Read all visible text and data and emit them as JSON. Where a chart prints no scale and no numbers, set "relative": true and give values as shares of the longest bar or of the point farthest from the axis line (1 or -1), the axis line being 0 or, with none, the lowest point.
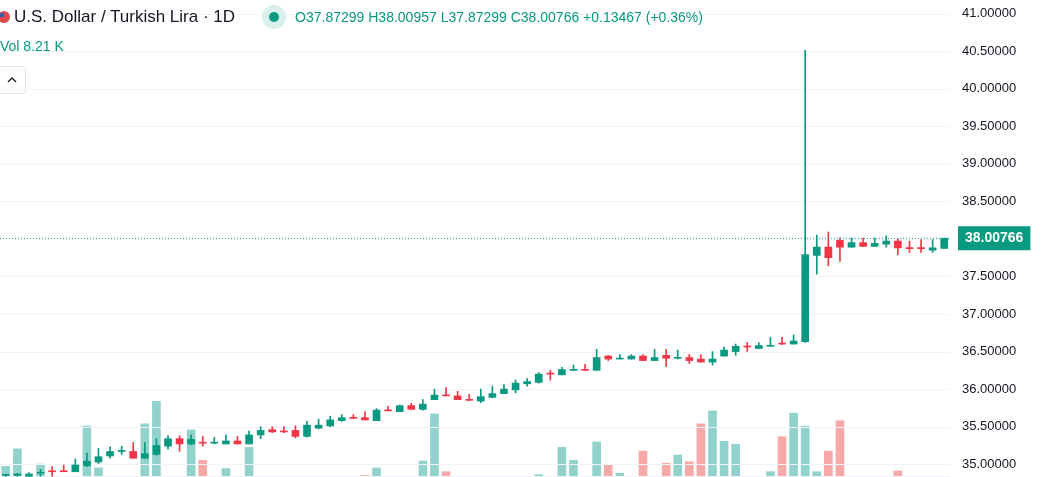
{
  "chart_data": [
    {
      "type": "candlestick",
      "title": "U.S. Dollar / Turkish Lira · 1D",
      "subtitle": "O37.87299 H38.00957 L37.87299 C38.00766 +0.13467 (+0.36%)",
      "annotations": [
        "Vol 8.21 K"
      ],
      "categories": [
        null,
        null,
        null,
        null,
        null,
        null,
        null,
        null,
        null,
        null,
        null,
        null,
        null,
        null,
        null,
        null,
        null,
        null,
        null,
        null,
        null,
        null,
        null,
        null,
        null,
        null,
        null,
        null,
        null,
        null,
        null,
        null,
        null,
        null,
        null,
        null,
        null,
        null,
        null,
        null,
        null,
        null,
        null,
        null,
        null,
        null,
        null,
        null,
        null,
        null,
        null,
        null,
        null,
        null,
        null,
        null,
        null,
        null,
        null,
        null,
        null,
        null,
        null,
        null,
        null,
        null,
        null,
        null,
        null,
        null,
        null,
        null,
        null,
        null,
        null,
        null,
        null,
        null,
        null,
        null,
        null,
        null
      ],
      "ohlc": [
        [
          34.85,
          34.87,
          34.84,
          34.86
        ],
        [
          34.85,
          34.88,
          34.84,
          34.87
        ],
        [
          34.84,
          34.89,
          34.84,
          34.87
        ],
        [
          34.88,
          34.93,
          34.84,
          34.89
        ],
        [
          34.91,
          34.97,
          34.84,
          34.9
        ],
        [
          34.91,
          34.99,
          34.9,
          34.9
        ],
        [
          34.9,
          35.07,
          34.9,
          34.99
        ],
        [
          34.98,
          35.15,
          34.97,
          35.04
        ],
        [
          35.03,
          35.21,
          35.01,
          35.1
        ],
        [
          35.11,
          35.23,
          35.08,
          35.17
        ],
        [
          35.17,
          35.24,
          35.13,
          35.18
        ],
        [
          35.17,
          35.29,
          35.08,
          35.08
        ],
        [
          35.08,
          35.29,
          35.08,
          35.14
        ],
        [
          35.13,
          35.34,
          35.12,
          35.25
        ],
        [
          35.24,
          35.38,
          35.2,
          35.34
        ],
        [
          35.34,
          35.38,
          35.17,
          35.27
        ],
        [
          35.27,
          35.39,
          35.26,
          35.33
        ],
        [
          35.29,
          35.37,
          35.24,
          35.28
        ],
        [
          35.28,
          35.36,
          35.27,
          35.29
        ],
        [
          35.27,
          35.39,
          35.27,
          35.31
        ],
        [
          35.31,
          35.37,
          35.27,
          35.27
        ],
        [
          35.27,
          35.44,
          35.27,
          35.39
        ],
        [
          35.39,
          35.5,
          35.34,
          35.45
        ],
        [
          35.46,
          35.5,
          35.42,
          35.43
        ],
        [
          35.44,
          35.5,
          35.42,
          35.43
        ],
        [
          35.45,
          35.51,
          35.35,
          35.37
        ],
        [
          35.37,
          35.57,
          35.36,
          35.52
        ],
        [
          35.48,
          35.6,
          35.47,
          35.52
        ],
        [
          35.51,
          35.64,
          35.5,
          35.59
        ],
        [
          35.58,
          35.66,
          35.57,
          35.62
        ],
        [
          35.62,
          35.66,
          35.61,
          35.61
        ],
        [
          35.62,
          35.7,
          35.59,
          35.59
        ],
        [
          35.58,
          35.74,
          35.58,
          35.72
        ],
        [
          35.72,
          35.77,
          35.71,
          35.71
        ],
        [
          35.7,
          35.79,
          35.7,
          35.78
        ],
        [
          35.78,
          35.81,
          35.73,
          35.73
        ],
        [
          35.73,
          35.86,
          35.72,
          35.8
        ],
        [
          35.86,
          36.0,
          35.86,
          35.92
        ],
        [
          35.92,
          36.02,
          35.91,
          35.91
        ],
        [
          35.91,
          35.97,
          35.86,
          35.86
        ],
        [
          35.86,
          35.93,
          35.85,
          35.85
        ],
        [
          35.84,
          36.0,
          35.82,
          35.9
        ],
        [
          35.89,
          36.04,
          35.89,
          35.94
        ],
        [
          35.94,
          36.06,
          35.94,
          36.0
        ],
        [
          35.99,
          36.12,
          35.95,
          36.08
        ],
        [
          36.07,
          36.14,
          36.04,
          36.1
        ],
        [
          36.09,
          36.22,
          36.08,
          36.2
        ],
        [
          36.21,
          36.25,
          36.12,
          36.2
        ],
        [
          36.19,
          36.29,
          36.19,
          36.26
        ],
        [
          36.25,
          36.32,
          36.25,
          36.26
        ],
        [
          36.26,
          36.33,
          36.25,
          36.25
        ],
        [
          36.25,
          36.53,
          36.25,
          36.42
        ],
        [
          36.44,
          36.45,
          36.38,
          36.4
        ],
        [
          36.4,
          36.46,
          36.4,
          36.41
        ],
        [
          36.4,
          36.46,
          36.4,
          36.44
        ],
        [
          36.44,
          36.46,
          36.38,
          36.38
        ],
        [
          36.38,
          36.53,
          36.38,
          36.42
        ],
        [
          36.45,
          36.53,
          36.3,
          36.41
        ],
        [
          36.41,
          36.52,
          36.4,
          36.42
        ],
        [
          36.42,
          36.46,
          36.34,
          36.38
        ],
        [
          36.4,
          36.46,
          36.36,
          36.36
        ],
        [
          36.36,
          36.5,
          36.32,
          36.4
        ],
        [
          36.44,
          36.56,
          36.44,
          36.52
        ],
        [
          36.5,
          36.6,
          36.45,
          36.57
        ],
        [
          36.57,
          36.62,
          36.5,
          36.56
        ],
        [
          36.54,
          36.62,
          36.54,
          36.58
        ],
        [
          36.57,
          36.69,
          36.57,
          36.58
        ],
        [
          36.61,
          36.69,
          36.59,
          36.6
        ],
        [
          36.6,
          36.72,
          36.6,
          36.64
        ],
        [
          36.63,
          40.51,
          36.62,
          37.79
        ],
        [
          37.78,
          38.05,
          37.53,
          37.89
        ],
        [
          37.89,
          38.09,
          37.64,
          37.75
        ],
        [
          37.98,
          38.01,
          37.7,
          37.89
        ],
        [
          37.89,
          38.01,
          37.89,
          37.95
        ],
        [
          37.95,
          38.01,
          37.9,
          37.9
        ],
        [
          37.9,
          38.01,
          37.9,
          37.94
        ],
        [
          37.93,
          38.04,
          37.89,
          37.97
        ],
        [
          37.97,
          38.0,
          37.79,
          37.88
        ],
        [
          37.88,
          37.97,
          37.82,
          37.87
        ],
        [
          37.88,
          37.99,
          37.82,
          37.87
        ],
        [
          37.85,
          37.99,
          37.82,
          37.88
        ],
        [
          37.87299,
          38.00957,
          37.87299,
          38.00766
        ]
      ],
      "colors": [
        "#089981",
        "#089981",
        "#089981",
        "#089981",
        "#f23645",
        "#f23645",
        "#089981",
        "#089981",
        "#089981",
        "#089981",
        "#089981",
        "#f23645",
        "#089981",
        "#089981",
        "#089981",
        "#f23645",
        "#089981",
        "#f23645",
        "#089981",
        "#089981",
        "#f23645",
        "#089981",
        "#089981",
        "#f23645",
        "#f23645",
        "#f23645",
        "#089981",
        "#089981",
        "#089981",
        "#089981",
        "#f23645",
        "#f23645",
        "#089981",
        "#f23645",
        "#089981",
        "#f23645",
        "#089981",
        "#089981",
        "#f23645",
        "#f23645",
        "#f23645",
        "#089981",
        "#089981",
        "#089981",
        "#089981",
        "#089981",
        "#089981",
        "#f23645",
        "#089981",
        "#089981",
        "#f23645",
        "#089981",
        "#f23645",
        "#089981",
        "#089981",
        "#f23645",
        "#089981",
        "#f23645",
        "#089981",
        "#f23645",
        "#f23645",
        "#089981",
        "#089981",
        "#089981",
        "#f23645",
        "#089981",
        "#089981",
        "#f23645",
        "#089981",
        "#089981",
        "#089981",
        "#f23645",
        "#f23645",
        "#089981",
        "#f23645",
        "#089981",
        "#089981",
        "#f23645",
        "#f23645",
        "#f23645",
        "#089981",
        "#089981"
      ],
      "ylim": [
        34.83,
        41
      ],
      "yticks": [
        {
          "value": 35,
          "label": "35.00000"
        },
        {
          "value": 35.5,
          "label": "35.50000"
        },
        {
          "value": 36,
          "label": "36.00000"
        },
        {
          "value": 36.5,
          "label": "36.50000"
        },
        {
          "value": 37,
          "label": "37.00000"
        },
        {
          "value": 37.5,
          "label": "37.50000"
        },
        {
          "value": 38,
          "label": null
        },
        {
          "value": 38.5,
          "label": "38.50000"
        },
        {
          "value": 39,
          "label": "39.00000"
        },
        {
          "value": 39.5,
          "label": "39.50000"
        },
        {
          "value": 40,
          "label": "40.00000"
        },
        {
          "value": 40.5,
          "label": "40.50000"
        },
        {
          "value": 41,
          "label": "41.00000"
        }
      ],
      "grid": "y",
      "tick_labels": "y",
      "ref_lines": [
        {
          "axis": "y",
          "value": 38.00766,
          "label": "38.00766",
          "color": "#089981",
          "line_style": "dotted"
        }
      ]
    },
    {
      "type": "bar",
      "relative": true,
      "tick_labels": false,
      "categories": [
        null,
        null,
        null,
        null,
        null,
        null,
        null,
        null,
        null,
        null,
        null,
        null,
        null,
        null,
        null,
        null,
        null,
        null,
        null,
        null,
        null,
        null,
        null,
        null,
        null,
        null,
        null,
        null,
        null,
        null,
        null,
        null,
        null,
        null,
        null,
        null,
        null,
        null,
        null,
        null,
        null,
        null,
        null,
        null,
        null,
        null,
        null,
        null,
        null,
        null,
        null,
        null,
        null,
        null,
        null,
        null,
        null,
        null,
        null,
        null,
        null,
        null,
        null,
        null,
        null,
        null,
        null,
        null,
        null,
        null,
        null,
        null,
        null,
        null,
        null,
        null,
        null,
        null,
        null,
        null,
        null,
        null
      ],
      "values": [
        0.14,
        0.37,
        0,
        0.17,
        0,
        0,
        0,
        0.67,
        0.12,
        0,
        0,
        0,
        0.7,
        1,
        0,
        0,
        0.62,
        0.22,
        0,
        0.11,
        0,
        0.39,
        0,
        0,
        0,
        0,
        0,
        0,
        0,
        0,
        0,
        0.02,
        0.12,
        0,
        0,
        0,
        0.21,
        0.83,
        0.07,
        0,
        0,
        0,
        0,
        0,
        0,
        0,
        0.03,
        0,
        0.39,
        0.22,
        0,
        0.46,
        0.16,
        0.05,
        0,
        0.34,
        0,
        0.18,
        0.29,
        0.2,
        0.7,
        0.87,
        0.47,
        0.43,
        0,
        0,
        0.07,
        0.53,
        0.84,
        0.67,
        0.07,
        0.34,
        0.74,
        0,
        0,
        0,
        0,
        0.08,
        0,
        0,
        0,
        0
      ],
      "colors": [
        "#92d2cc",
        "#92d2cc",
        null,
        "#92d2cc",
        null,
        null,
        null,
        "#92d2cc",
        "#92d2cc",
        null,
        null,
        null,
        "#92d2cc",
        "#92d2cc",
        null,
        null,
        "#92d2cc",
        "#f7a9a7",
        null,
        "#92d2cc",
        null,
        "#92d2cc",
        null,
        null,
        null,
        null,
        null,
        null,
        null,
        null,
        null,
        "#f7a9a7",
        "#92d2cc",
        null,
        null,
        null,
        "#92d2cc",
        "#92d2cc",
        "#f7a9a7",
        null,
        null,
        null,
        null,
        null,
        null,
        null,
        "#92d2cc",
        null,
        "#92d2cc",
        "#92d2cc",
        null,
        "#92d2cc",
        "#f7a9a7",
        "#92d2cc",
        null,
        "#f7a9a7",
        null,
        "#f7a9a7",
        "#92d2cc",
        "#f7a9a7",
        "#f7a9a7",
        "#92d2cc",
        "#92d2cc",
        "#92d2cc",
        null,
        null,
        "#92d2cc",
        "#f7a9a7",
        "#92d2cc",
        "#92d2cc",
        "#92d2cc",
        "#f7a9a7",
        "#f7a9a7",
        null,
        null,
        null,
        null,
        "#f7a9a7",
        null,
        null,
        null,
        null
      ]
    }
  ]
}
